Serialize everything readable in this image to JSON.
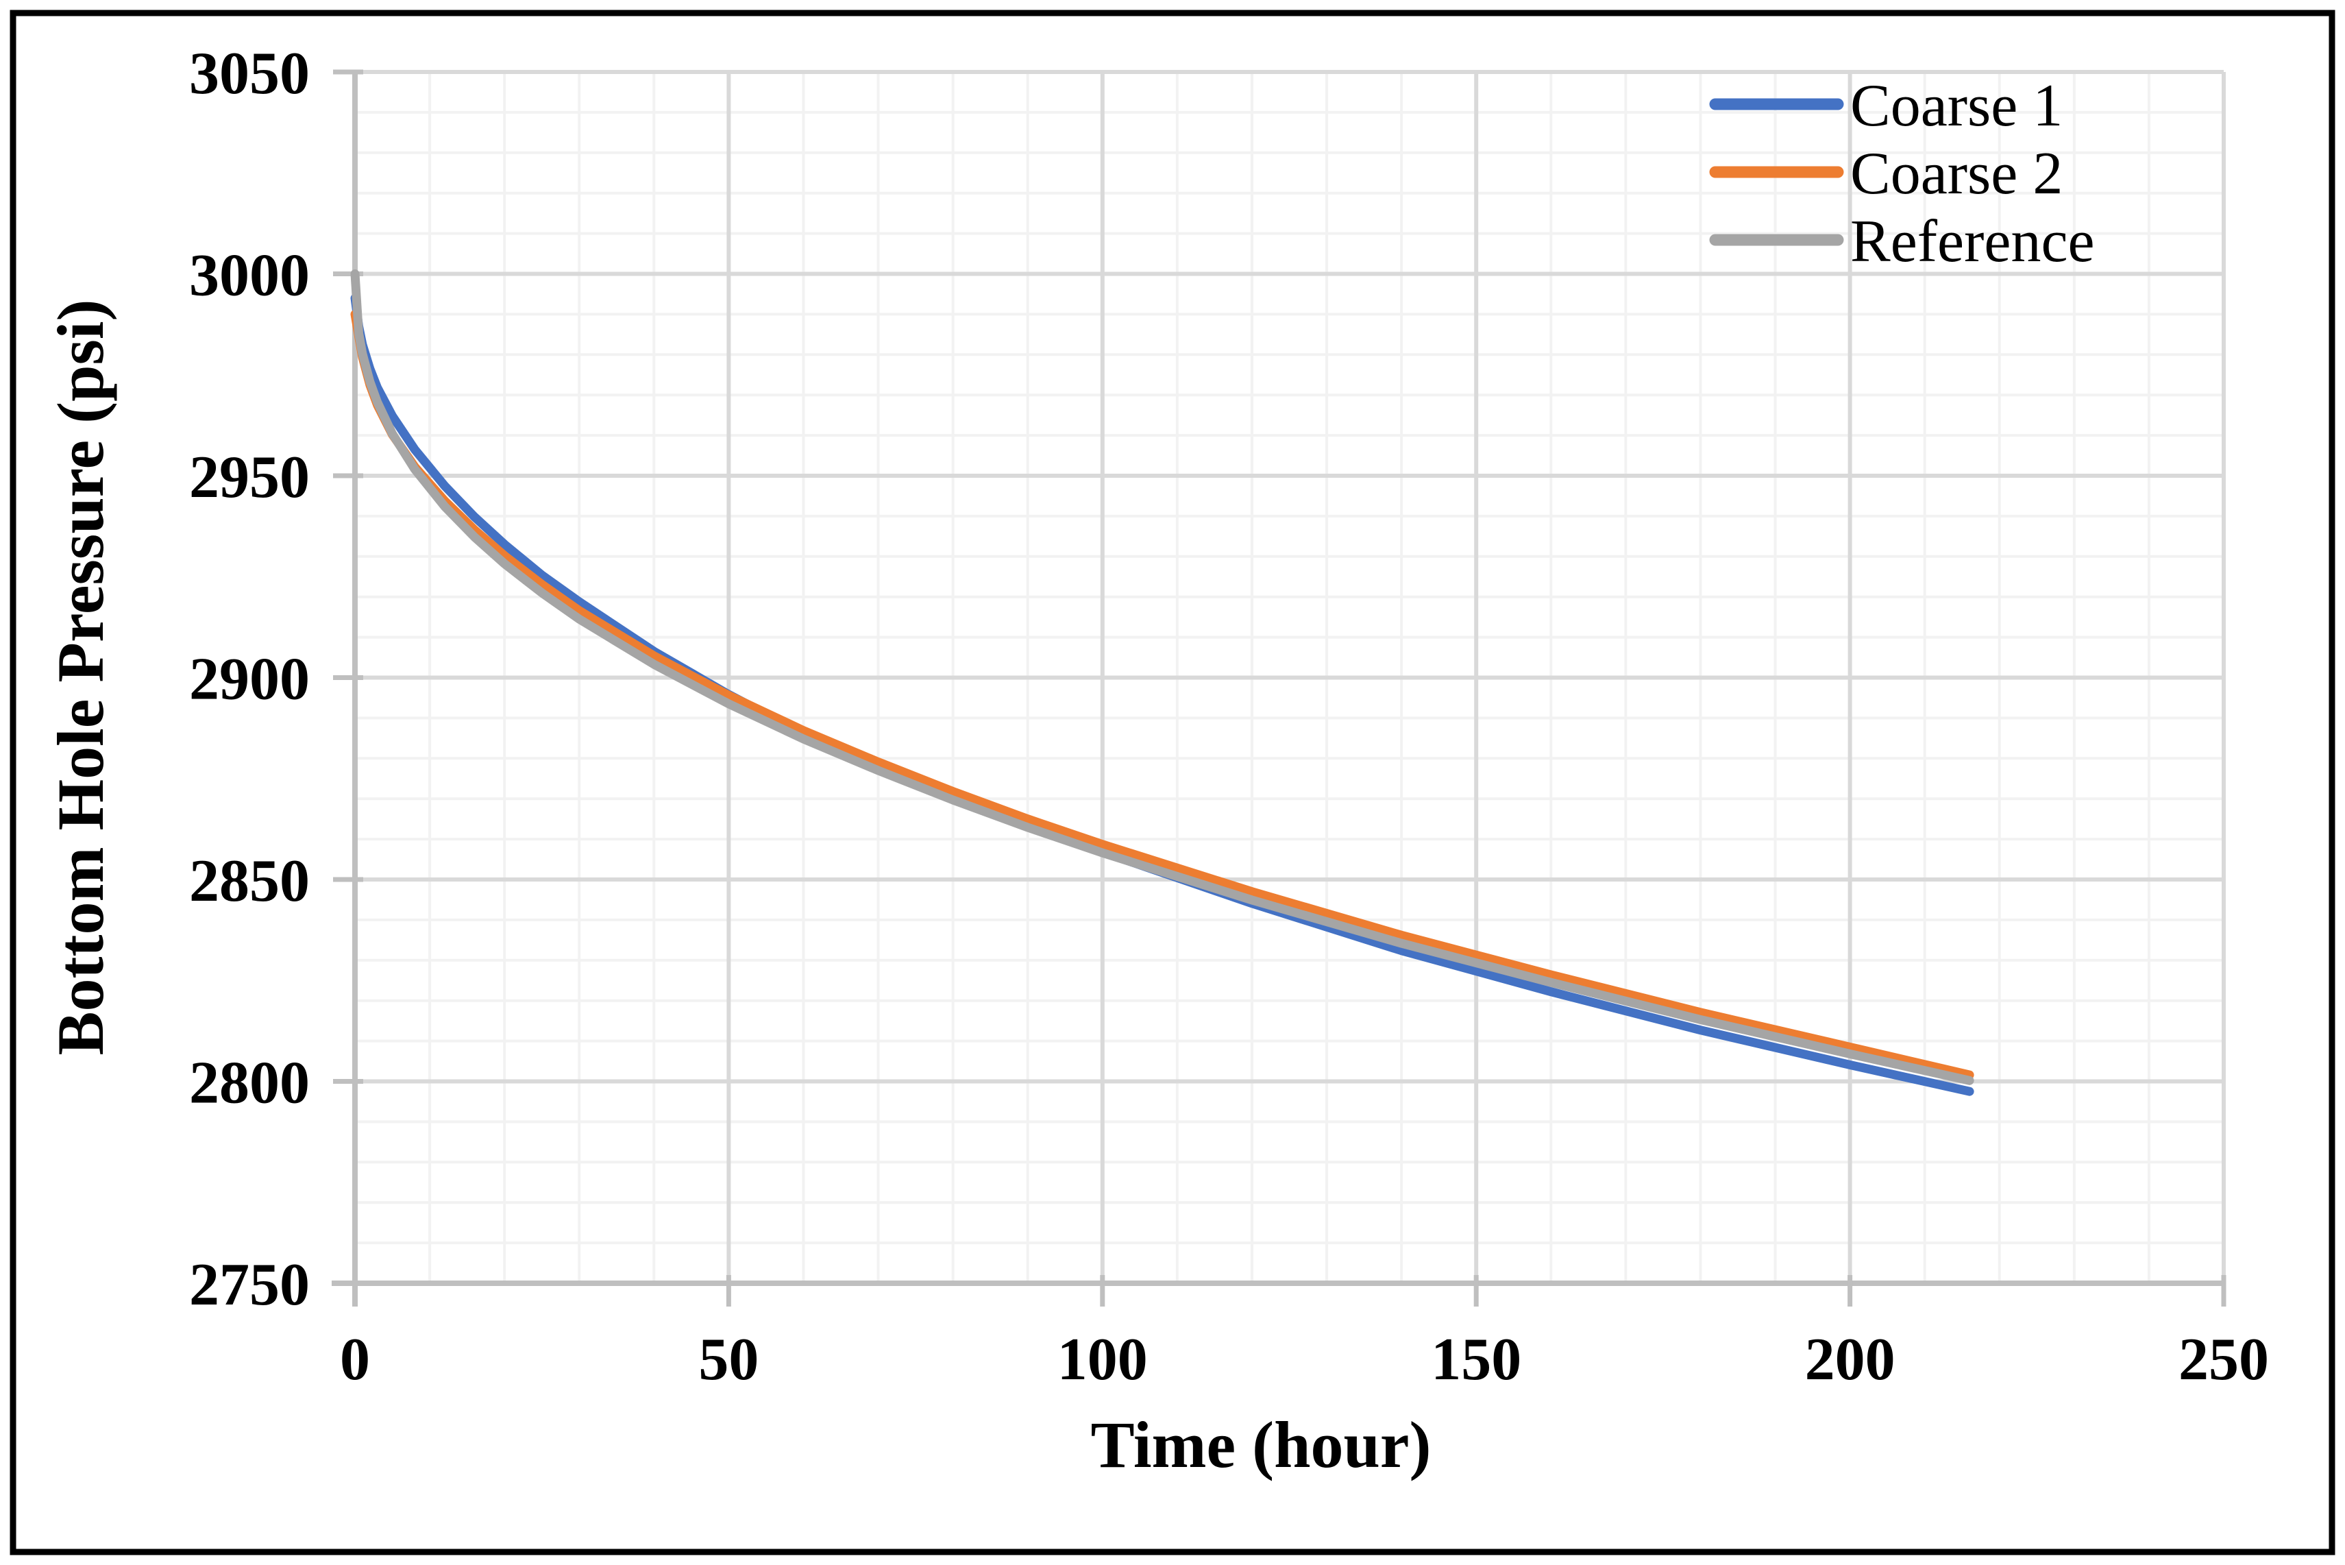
{
  "figure": {
    "background_color": "#FFFFFF",
    "border_color": "#000000"
  },
  "chart_data": {
    "type": "line",
    "title": "",
    "xlabel": "Time (hour)",
    "ylabel": "Bottom Hole Pressure (psi)",
    "xlim": [
      0,
      250
    ],
    "ylim": [
      2750,
      3050
    ],
    "x_major_ticks": [
      0,
      50,
      100,
      150,
      200,
      250
    ],
    "y_major_ticks": [
      2750,
      2800,
      2850,
      2900,
      2950,
      3000,
      3050
    ],
    "x_minor_step": 10,
    "y_minor_step": 10,
    "grid": {
      "minor_color": "#F2F2F2",
      "major_color": "#D9D9D9",
      "axis_color": "#BFBFBF",
      "minor_on": true,
      "major_on": true
    },
    "legend": {
      "position": "top-right-inside",
      "entries": [
        "Coarse 1",
        "Coarse 2",
        "Reference"
      ]
    },
    "series": [
      {
        "name": "Coarse 1",
        "color": "#4472C4",
        "points": [
          [
            0,
            2994
          ],
          [
            0.5,
            2987
          ],
          [
            1,
            2982.5
          ],
          [
            2,
            2976.5
          ],
          [
            3,
            2971.8
          ],
          [
            5,
            2964.8
          ],
          [
            8,
            2956.5
          ],
          [
            12,
            2947.5
          ],
          [
            16,
            2939.8
          ],
          [
            20,
            2933
          ],
          [
            25,
            2925.4
          ],
          [
            30,
            2918.8
          ],
          [
            40,
            2906.5
          ],
          [
            50,
            2895.8
          ],
          [
            60,
            2886.2
          ],
          [
            70,
            2878
          ],
          [
            80,
            2870.2
          ],
          [
            90,
            2863.2
          ],
          [
            100,
            2856.8
          ],
          [
            120,
            2844.1
          ],
          [
            140,
            2832.4
          ],
          [
            160,
            2822.2
          ],
          [
            180,
            2812.7
          ],
          [
            200,
            2804.1
          ],
          [
            216,
            2797.5
          ]
        ]
      },
      {
        "name": "Coarse 2",
        "color": "#ED7D31",
        "points": [
          [
            0,
            2990
          ],
          [
            0.5,
            2984.5
          ],
          [
            1,
            2979.4
          ],
          [
            2,
            2972.5
          ],
          [
            3,
            2967.5
          ],
          [
            5,
            2960.2
          ],
          [
            8,
            2952.2
          ],
          [
            12,
            2943.8
          ],
          [
            16,
            2936.6
          ],
          [
            20,
            2930.2
          ],
          [
            25,
            2923.1
          ],
          [
            30,
            2916.6
          ],
          [
            40,
            2905.4
          ],
          [
            50,
            2895.6
          ],
          [
            60,
            2886.9
          ],
          [
            70,
            2879.1
          ],
          [
            80,
            2871.8
          ],
          [
            90,
            2865
          ],
          [
            100,
            2858.7
          ],
          [
            120,
            2847
          ],
          [
            140,
            2836.2
          ],
          [
            160,
            2826.4
          ],
          [
            180,
            2817.1
          ],
          [
            200,
            2808.5
          ],
          [
            216,
            2801.6
          ]
        ]
      },
      {
        "name": "Reference",
        "color": "#A5A5A5",
        "points": [
          [
            0,
            3000
          ],
          [
            0.5,
            2985.3
          ],
          [
            1,
            2980.2
          ],
          [
            2,
            2973.3
          ],
          [
            3,
            2968.2
          ],
          [
            5,
            2960.4
          ],
          [
            8,
            2951.6
          ],
          [
            12,
            2942.4
          ],
          [
            16,
            2934.8
          ],
          [
            20,
            2928.2
          ],
          [
            25,
            2921
          ],
          [
            30,
            2914.5
          ],
          [
            40,
            2903.3
          ],
          [
            50,
            2893.5
          ],
          [
            60,
            2884.8
          ],
          [
            70,
            2877
          ],
          [
            80,
            2869.7
          ],
          [
            90,
            2862.9
          ],
          [
            100,
            2856.6
          ],
          [
            120,
            2844.9
          ],
          [
            140,
            2834.2
          ],
          [
            160,
            2824.5
          ],
          [
            180,
            2815.3
          ],
          [
            200,
            2806.8
          ],
          [
            216,
            2800.2
          ]
        ]
      }
    ]
  }
}
